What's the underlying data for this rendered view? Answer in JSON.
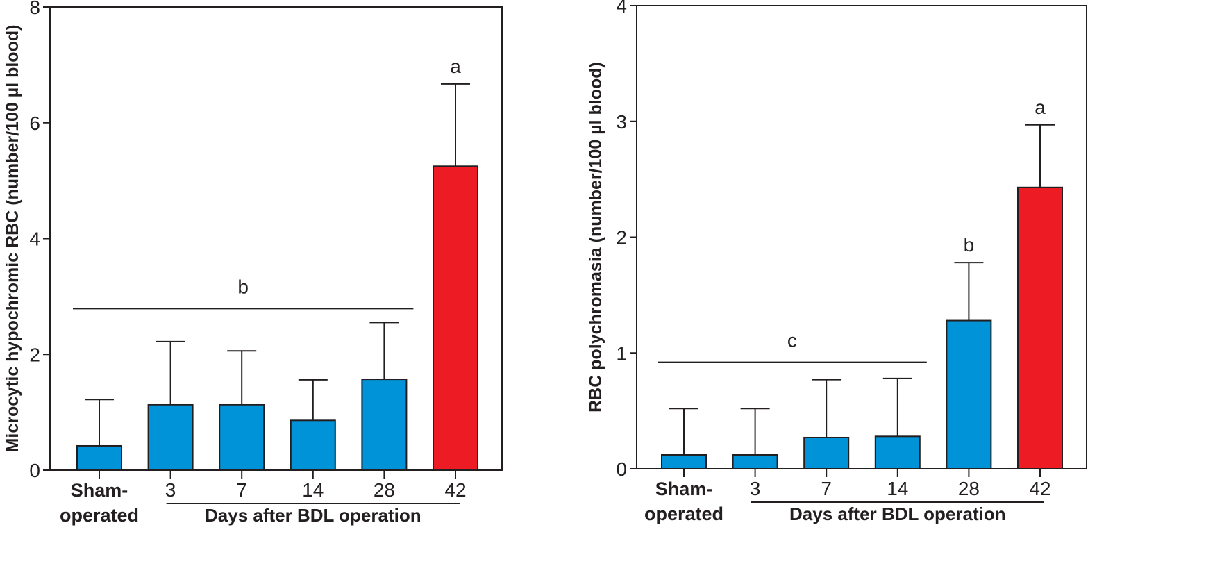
{
  "colors": {
    "bar_default": "#0093d8",
    "bar_highlight": "#ed1c24",
    "stroke": "#231f20",
    "background": "#ffffff"
  },
  "chart_data": [
    {
      "type": "bar",
      "title": "",
      "ylabel": "Microcytic hypochromic RBC (number/100 µl blood)",
      "xlabel": "Days after BDL operation",
      "categories": [
        "Sham-operated",
        "3",
        "7",
        "14",
        "28",
        "42"
      ],
      "category_lines": [
        [
          "Sham-",
          "operated"
        ],
        [
          "3"
        ],
        [
          "7"
        ],
        [
          "14"
        ],
        [
          "28"
        ],
        [
          "42"
        ]
      ],
      "ylim": [
        0,
        8
      ],
      "yticks": [
        0,
        2,
        4,
        6,
        8
      ],
      "ytick_labels": [
        "0",
        "2",
        "4",
        "6",
        "8"
      ],
      "grid": false,
      "frame": "box",
      "values": [
        0.42,
        1.13,
        1.13,
        0.86,
        1.57,
        5.25
      ],
      "error_upper": [
        1.22,
        2.22,
        2.06,
        1.56,
        2.55,
        6.67
      ],
      "highlight": [
        false,
        false,
        false,
        false,
        false,
        true
      ],
      "days_group": {
        "label": "Days after BDL operation",
        "from_index": 1,
        "to_index": 5
      },
      "significance": [
        {
          "label": "b",
          "type": "bracket",
          "from_index": 0,
          "to_index": 4,
          "y": 2.79
        },
        {
          "label": "a",
          "type": "bar",
          "index": 5
        }
      ]
    },
    {
      "type": "bar",
      "title": "",
      "ylabel": "RBC polychromasia (number/100 µl blood)",
      "xlabel": "Days after BDL operation",
      "categories": [
        "Sham-operated",
        "3",
        "7",
        "14",
        "28",
        "42"
      ],
      "category_lines": [
        [
          "Sham-",
          "operated"
        ],
        [
          "3"
        ],
        [
          "7"
        ],
        [
          "14"
        ],
        [
          "28"
        ],
        [
          "42"
        ]
      ],
      "ylim": [
        0,
        4
      ],
      "yticks": [
        0,
        1,
        2,
        3,
        4
      ],
      "ytick_labels": [
        "0",
        "1",
        "2",
        "3",
        "4"
      ],
      "grid": false,
      "frame": "box",
      "values": [
        0.12,
        0.12,
        0.27,
        0.28,
        1.28,
        2.43
      ],
      "error_upper": [
        0.52,
        0.52,
        0.77,
        0.78,
        1.78,
        2.97
      ],
      "highlight": [
        false,
        false,
        false,
        false,
        false,
        true
      ],
      "days_group": {
        "label": "Days after BDL operation",
        "from_index": 1,
        "to_index": 5
      },
      "significance": [
        {
          "label": "c",
          "type": "bracket",
          "from_index": 0,
          "to_index": 3,
          "y": 0.92
        },
        {
          "label": "b",
          "type": "bar",
          "index": 4
        },
        {
          "label": "a",
          "type": "bar",
          "index": 5
        }
      ]
    }
  ]
}
